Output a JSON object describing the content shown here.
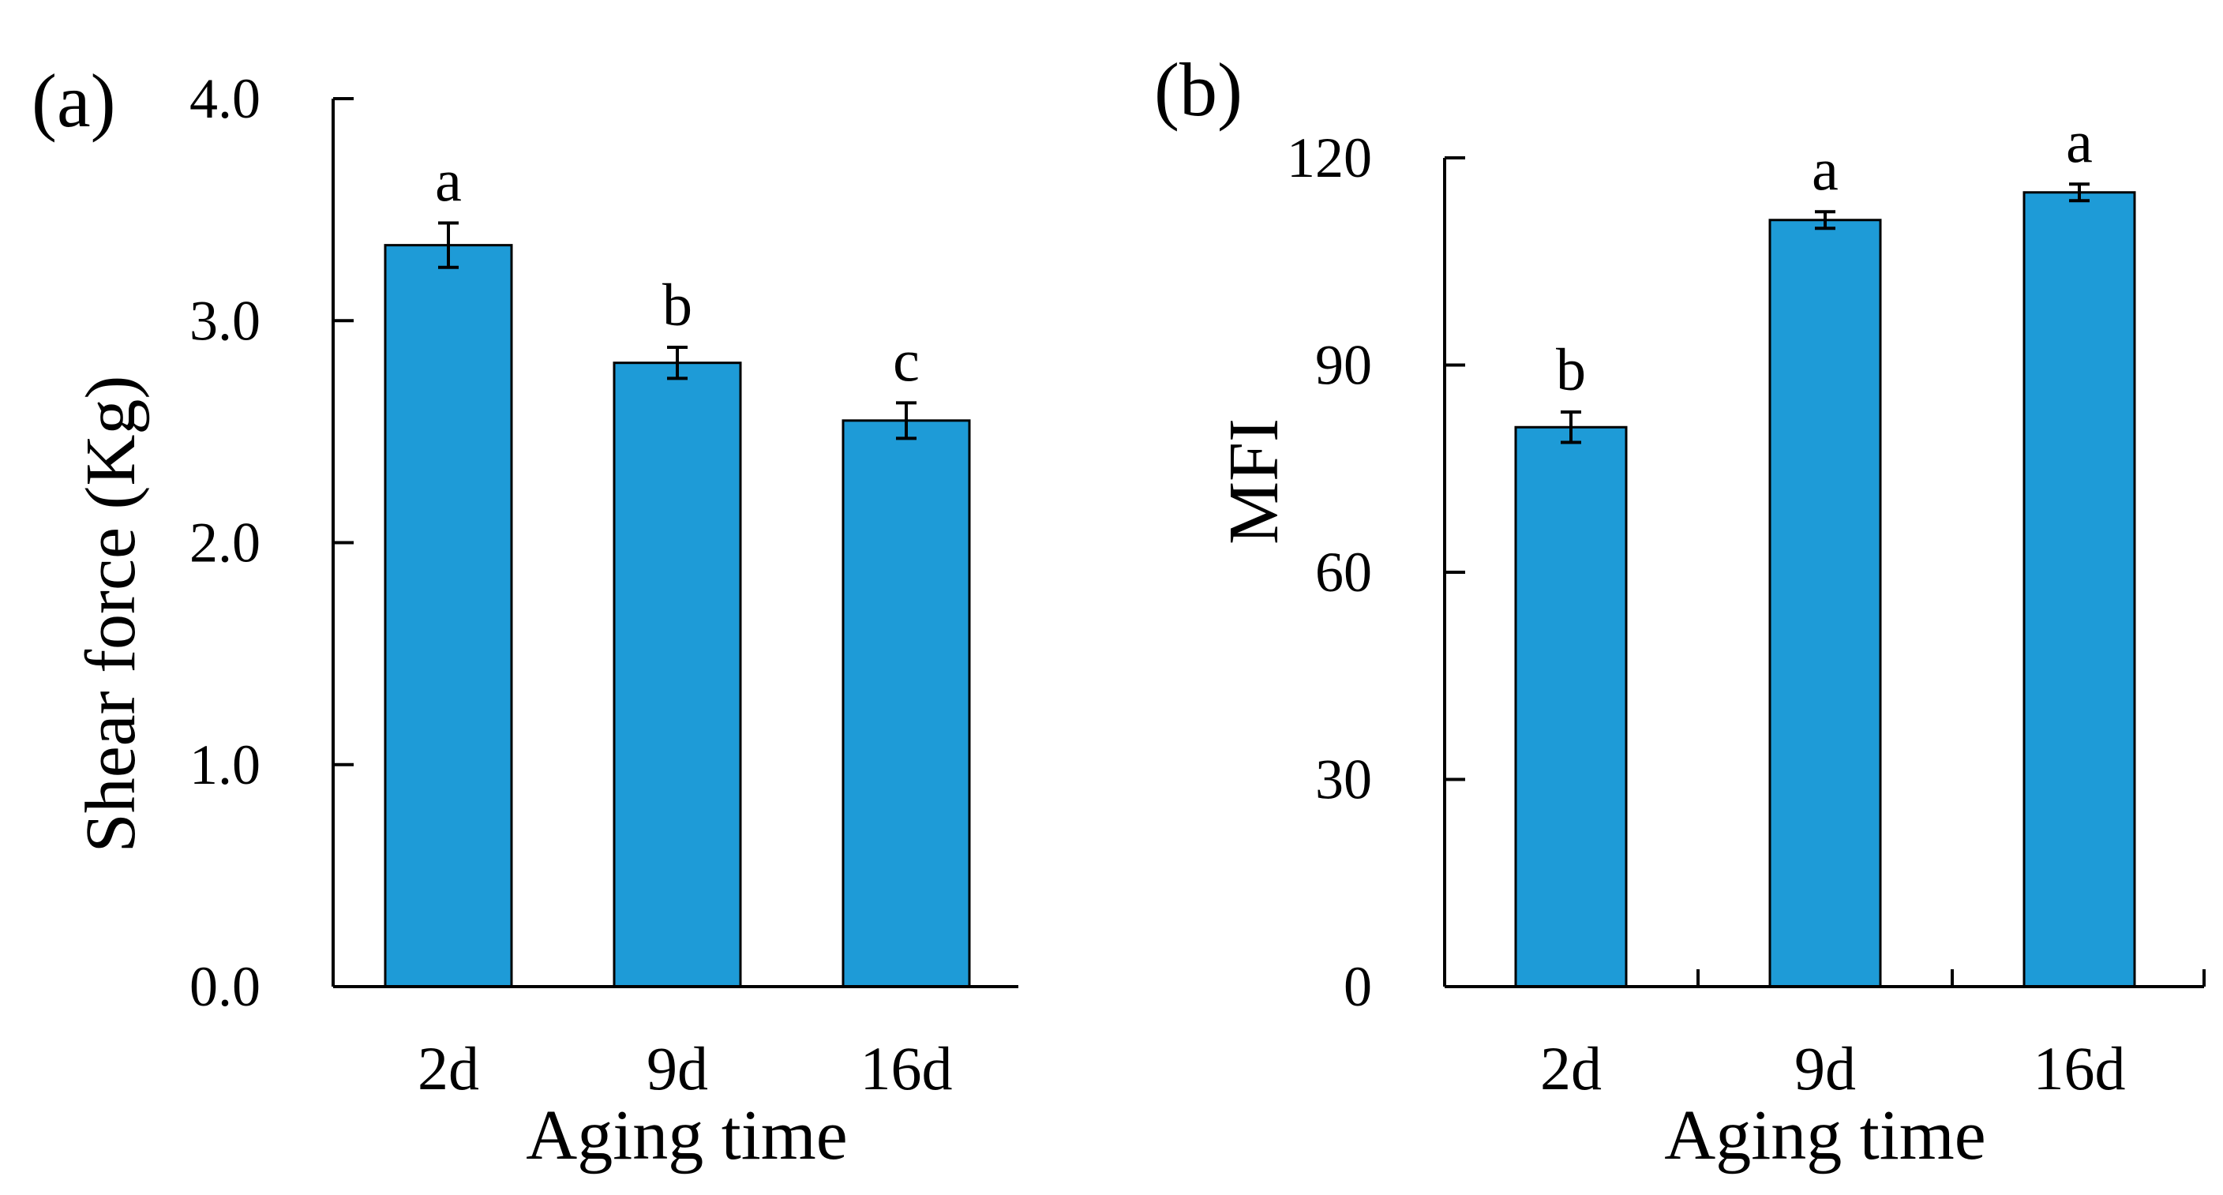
{
  "chart_data": [
    {
      "type": "bar",
      "panel_label": "(a)",
      "categories": [
        "2d",
        "9d",
        "16d"
      ],
      "values": [
        3.34,
        2.81,
        2.55
      ],
      "errors": [
        0.1,
        0.07,
        0.08
      ],
      "significance": [
        "a",
        "b",
        "c"
      ],
      "xlabel": "Aging time",
      "ylabel": "Shear force (Kg)",
      "ylim": [
        0,
        4.0
      ],
      "yticks": [
        0,
        1,
        2,
        3,
        4
      ],
      "ytick_labels": [
        "0.0",
        "1.0",
        "2.0",
        "3.0",
        "4.0"
      ],
      "bar_color": "#1E9BD7",
      "grid": false,
      "legend": "none"
    },
    {
      "type": "bar",
      "panel_label": "(b)",
      "categories": [
        "2d",
        "9d",
        "16d"
      ],
      "values": [
        81,
        111,
        115
      ],
      "errors": [
        2.2,
        1.2,
        1.2
      ],
      "significance": [
        "b",
        "a",
        "a"
      ],
      "xlabel": "Aging time",
      "ylabel": "MFI",
      "ylim": [
        0,
        120
      ],
      "yticks": [
        0,
        30,
        60,
        90,
        120
      ],
      "ytick_labels": [
        "0",
        "30",
        "60",
        "90",
        "120"
      ],
      "bar_color": "#1E9BD7",
      "grid": false,
      "legend": "none"
    }
  ]
}
